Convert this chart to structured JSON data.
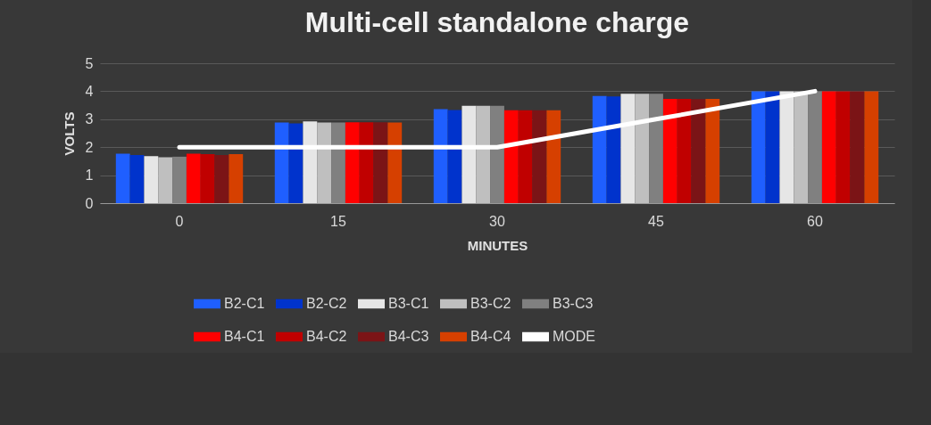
{
  "chart_data": {
    "type": "bar",
    "title": "Multi-cell standalone charge",
    "xlabel": "MINUTES",
    "ylabel": "VOLTS",
    "categories": [
      "0",
      "15",
      "30",
      "45",
      "60"
    ],
    "series": [
      {
        "name": "B2-C1",
        "color": "#1f5fff",
        "values": [
          1.77,
          2.88,
          3.36,
          3.83,
          4.0
        ]
      },
      {
        "name": "B2-C2",
        "color": "#0033cc",
        "values": [
          1.72,
          2.85,
          3.33,
          3.81,
          4.0
        ]
      },
      {
        "name": "B3-C1",
        "color": "#e6e6e6",
        "values": [
          1.68,
          2.92,
          3.48,
          3.91,
          4.0
        ]
      },
      {
        "name": "B3-C2",
        "color": "#bfbfbf",
        "values": [
          1.64,
          2.88,
          3.48,
          3.91,
          4.0
        ]
      },
      {
        "name": "B3-C3",
        "color": "#808080",
        "values": [
          1.66,
          2.88,
          3.48,
          3.91,
          4.0
        ]
      },
      {
        "name": "B4-C1",
        "color": "#ff0000",
        "values": [
          1.77,
          2.89,
          3.32,
          3.73,
          4.0
        ]
      },
      {
        "name": "B4-C2",
        "color": "#c00000",
        "values": [
          1.75,
          2.89,
          3.32,
          3.73,
          4.0
        ]
      },
      {
        "name": "B4-C3",
        "color": "#7b1416",
        "values": [
          1.72,
          2.89,
          3.32,
          3.72,
          4.0
        ]
      },
      {
        "name": "B4-C4",
        "color": "#d64000",
        "values": [
          1.75,
          2.88,
          3.32,
          3.73,
          4.0
        ]
      },
      {
        "name": "MODE",
        "type": "line",
        "color": "#ffffff",
        "values": [
          2,
          2,
          2,
          3,
          4
        ]
      }
    ],
    "ylim": [
      0,
      5
    ],
    "yticks": [
      0,
      1,
      2,
      3,
      4,
      5
    ],
    "grid": "y",
    "legend": "bottom"
  }
}
